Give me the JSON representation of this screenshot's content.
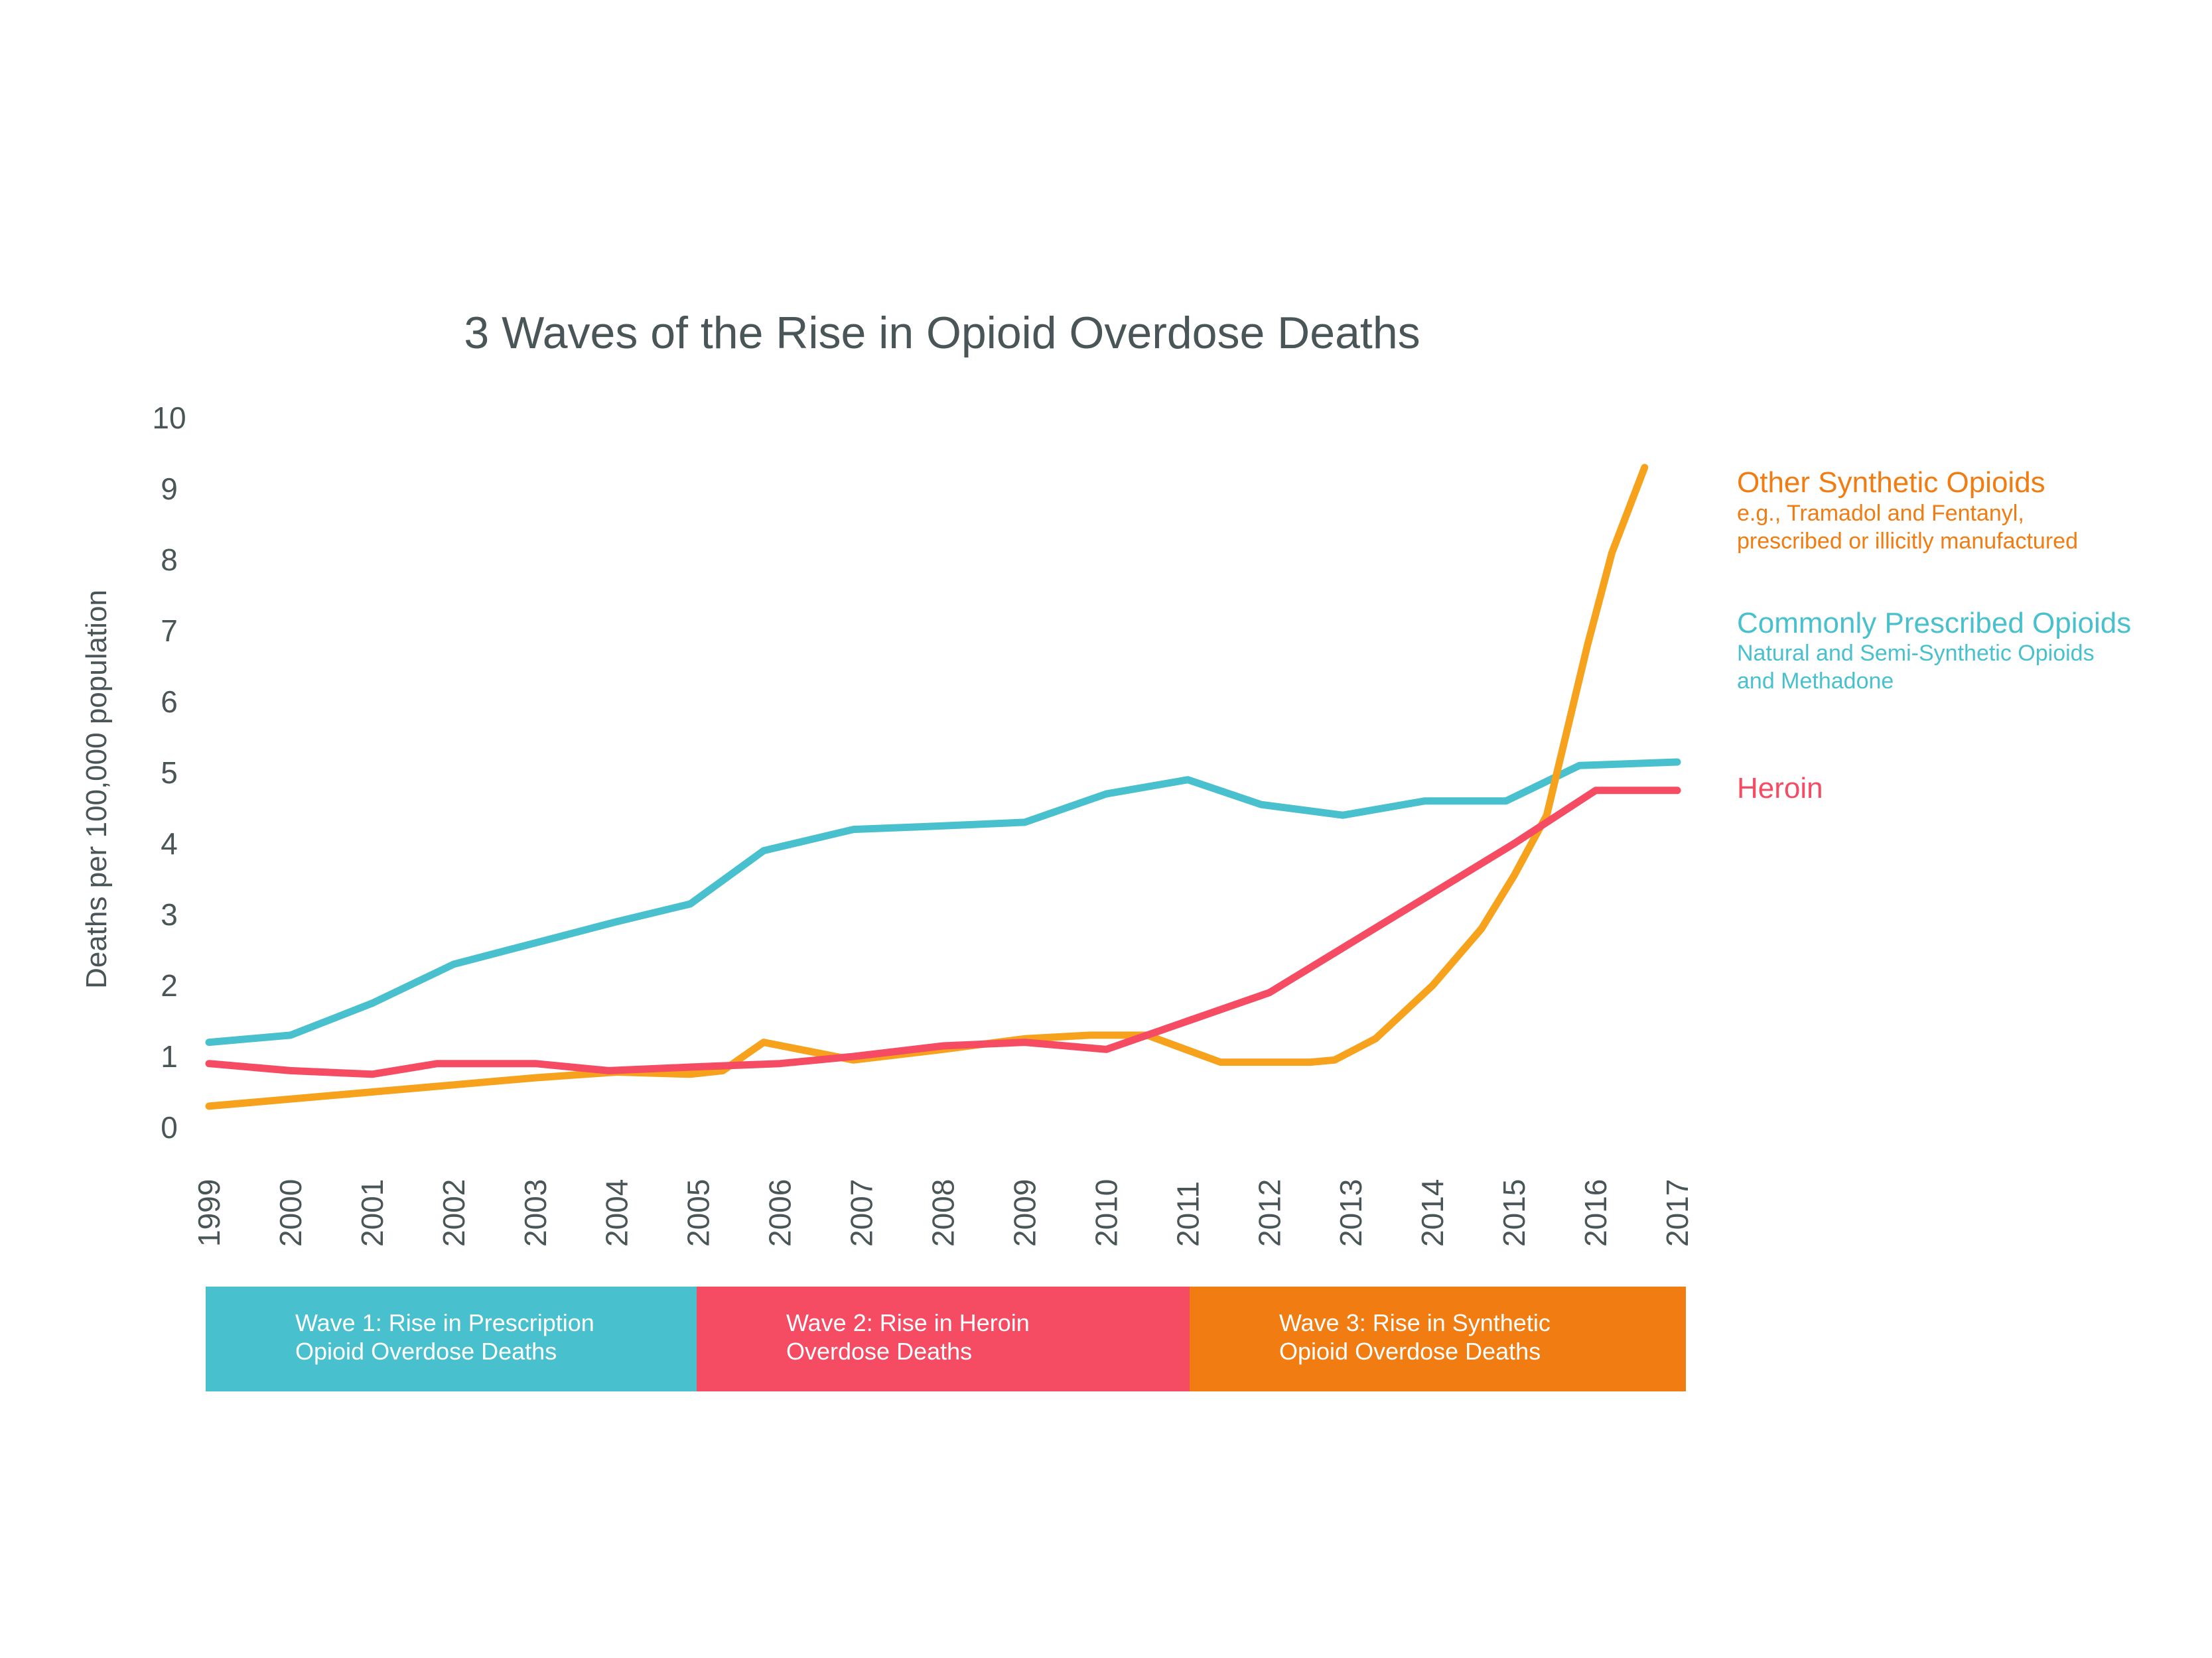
{
  "colors": {
    "synthetic": "#f7a21c",
    "prescribed": "#49c0cd",
    "heroin": "#f54b63",
    "synthetic_legend": "#f07c12",
    "wave1": "#49c0cd",
    "wave2": "#f54b63",
    "wave3": "#f07c12",
    "text": "#4a5558"
  },
  "chart_data": {
    "type": "line",
    "title": "3 Waves of the Rise in Opioid Overdose Deaths",
    "xlabel": "",
    "ylabel": "Deaths per 100,000 population",
    "ylim": [
      0,
      10
    ],
    "yticks": [
      0,
      1,
      2,
      3,
      4,
      5,
      6,
      7,
      8,
      9,
      10
    ],
    "x": [
      "1999",
      "2000",
      "2001",
      "2002",
      "2003",
      "2004",
      "2005",
      "2006",
      "2007",
      "2008",
      "2009",
      "2010",
      "2011",
      "2012",
      "2013",
      "2014",
      "2015",
      "2016",
      "2017"
    ],
    "grid": false,
    "legend_position": "right",
    "series": [
      {
        "key": "synthetic",
        "name": "Other Synthetic Opioids",
        "note_lines": [
          "e.g., Tramadol and Fentanyl,",
          "prescribed or illicitly manufactured"
        ],
        "color": "#f7a21c",
        "points": [
          [
            1999,
            0.3
          ],
          [
            2000,
            0.4
          ],
          [
            2001,
            0.5
          ],
          [
            2002,
            0.6
          ],
          [
            2003,
            0.7
          ],
          [
            2004,
            0.78
          ],
          [
            2004.9,
            0.75
          ],
          [
            2005.3,
            0.8
          ],
          [
            2005.8,
            1.2
          ],
          [
            2006.9,
            0.95
          ],
          [
            2008,
            1.1
          ],
          [
            2009,
            1.25
          ],
          [
            2009.8,
            1.3
          ],
          [
            2010.5,
            1.3
          ],
          [
            2011.4,
            0.92
          ],
          [
            2012.5,
            0.92
          ],
          [
            2012.8,
            0.95
          ],
          [
            2013.3,
            1.25
          ],
          [
            2014,
            2.0
          ],
          [
            2014.6,
            2.8
          ],
          [
            2015,
            3.55
          ],
          [
            2015.4,
            4.4
          ],
          [
            2015.9,
            6.8
          ],
          [
            2016.2,
            8.1
          ],
          [
            2016.6,
            9.3
          ]
        ]
      },
      {
        "key": "prescribed",
        "name": "Commonly Prescribed Opioids",
        "note_lines": [
          "Natural and Semi-Synthetic Opioids",
          "and Methadone"
        ],
        "color": "#49c0cd",
        "points": [
          [
            1999,
            1.2
          ],
          [
            2000,
            1.3
          ],
          [
            2001,
            1.75
          ],
          [
            2002,
            2.3
          ],
          [
            2003,
            2.6
          ],
          [
            2004,
            2.9
          ],
          [
            2004.9,
            3.15
          ],
          [
            2005.8,
            3.9
          ],
          [
            2006.9,
            4.2
          ],
          [
            2008,
            4.25
          ],
          [
            2009,
            4.3
          ],
          [
            2010,
            4.7
          ],
          [
            2011,
            4.9
          ],
          [
            2011.9,
            4.55
          ],
          [
            2012.9,
            4.4
          ],
          [
            2013.9,
            4.6
          ],
          [
            2014.9,
            4.6
          ],
          [
            2015.8,
            5.1
          ],
          [
            2017,
            5.15
          ]
        ]
      },
      {
        "key": "heroin",
        "name": "Heroin",
        "note_lines": [],
        "color": "#f54b63",
        "points": [
          [
            1999,
            0.9
          ],
          [
            2000,
            0.8
          ],
          [
            2001,
            0.75
          ],
          [
            2001.8,
            0.9
          ],
          [
            2003,
            0.9
          ],
          [
            2003.9,
            0.8
          ],
          [
            2004.9,
            0.85
          ],
          [
            2006,
            0.9
          ],
          [
            2006.9,
            1.0
          ],
          [
            2008,
            1.15
          ],
          [
            2009,
            1.2
          ],
          [
            2010,
            1.1
          ],
          [
            2011,
            1.5
          ],
          [
            2012,
            1.9
          ],
          [
            2013,
            2.6
          ],
          [
            2014,
            3.3
          ],
          [
            2015,
            4.0
          ],
          [
            2016,
            4.75
          ],
          [
            2017,
            4.75
          ]
        ]
      }
    ]
  },
  "waves": [
    {
      "line1": "Wave 1: Rise in Prescription",
      "line2": "Opioid Overdose Deaths",
      "color": "#49c0cd"
    },
    {
      "line1": "Wave 2: Rise in Heroin",
      "line2": "Overdose Deaths",
      "color": "#f54b63"
    },
    {
      "line1": "Wave 3: Rise in Synthetic",
      "line2": "Opioid Overdose Deaths",
      "color": "#f07c12"
    }
  ]
}
